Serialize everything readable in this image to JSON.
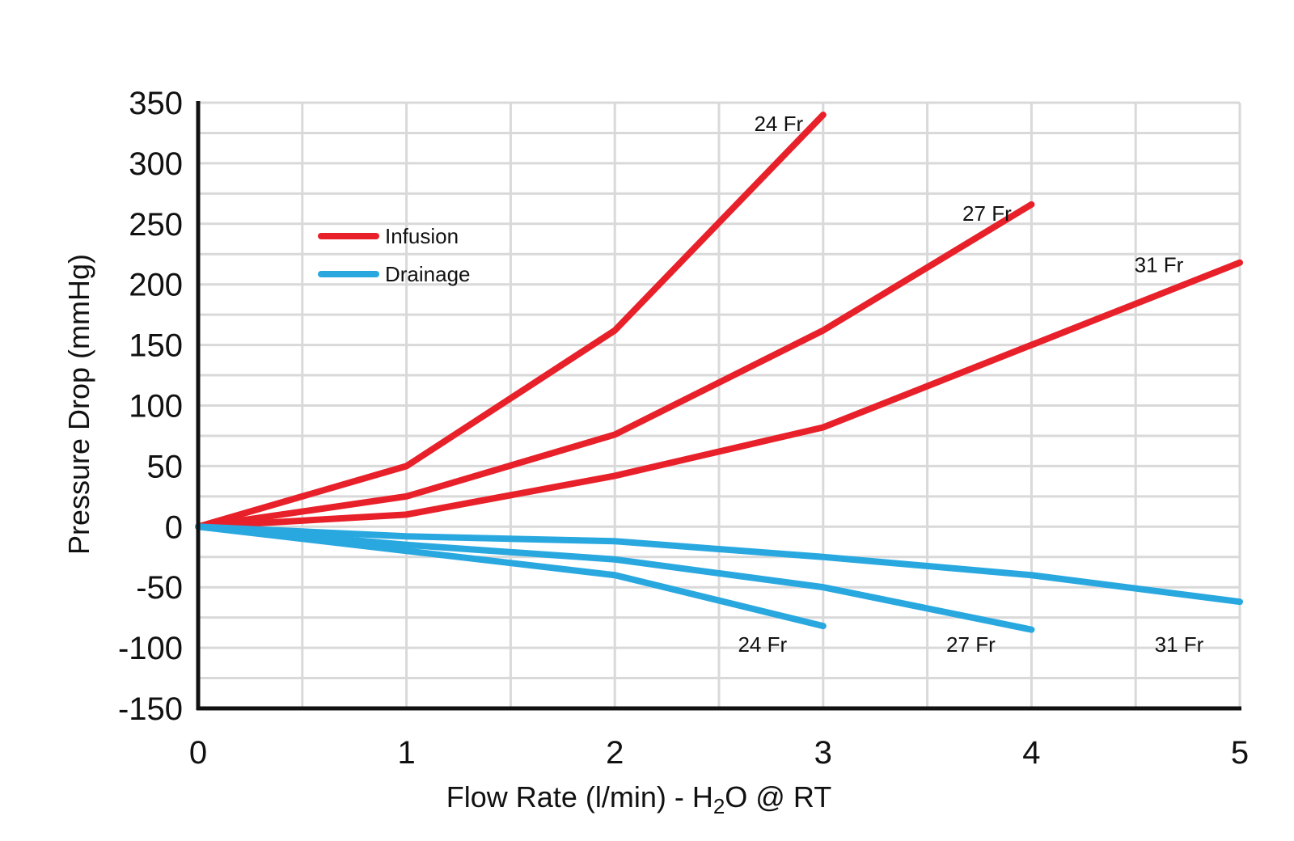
{
  "chart_data": {
    "type": "line",
    "xlabel_parts": [
      "Flow Rate (l/min) - H",
      "2",
      "O @ RT"
    ],
    "ylabel": "Pressure Drop (mmHg)",
    "xlim": [
      0,
      5
    ],
    "ylim": [
      -150,
      350
    ],
    "x_ticks": [
      "0",
      "1",
      "2",
      "3",
      "4",
      "5"
    ],
    "y_ticks": [
      "350",
      "300",
      "250",
      "200",
      "150",
      "100",
      "50",
      "0",
      "-50",
      "-100",
      "-150"
    ],
    "grid": true,
    "legend_position": "upper-left",
    "legend": [
      {
        "label": "Infusion",
        "color": "#e8202a"
      },
      {
        "label": "Drainage",
        "color": "#29a8e0"
      }
    ],
    "series": [
      {
        "group": "Infusion",
        "label": "24 Fr",
        "color": "#e8202a",
        "x": [
          0,
          1,
          2,
          3
        ],
        "y": [
          0,
          50,
          162,
          340
        ]
      },
      {
        "group": "Infusion",
        "label": "27 Fr",
        "color": "#e8202a",
        "x": [
          0,
          1,
          2,
          3,
          4
        ],
        "y": [
          0,
          25,
          76,
          162,
          266
        ]
      },
      {
        "group": "Infusion",
        "label": "31 Fr",
        "color": "#e8202a",
        "x": [
          0,
          1,
          2,
          3,
          4,
          5
        ],
        "y": [
          0,
          10,
          42,
          82,
          150,
          218
        ]
      },
      {
        "group": "Drainage",
        "label": "24 Fr",
        "color": "#29a8e0",
        "x": [
          0,
          1,
          2,
          3
        ],
        "y": [
          0,
          -20,
          -40,
          -82
        ]
      },
      {
        "group": "Drainage",
        "label": "27 Fr",
        "color": "#29a8e0",
        "x": [
          0,
          1,
          2,
          3,
          4
        ],
        "y": [
          0,
          -15,
          -27,
          -50,
          -85
        ]
      },
      {
        "group": "Drainage",
        "label": "31 Fr",
        "color": "#29a8e0",
        "x": [
          0,
          1,
          2,
          3,
          4,
          5
        ],
        "y": [
          0,
          -8,
          -12,
          -25,
          -40,
          -62
        ]
      }
    ]
  }
}
